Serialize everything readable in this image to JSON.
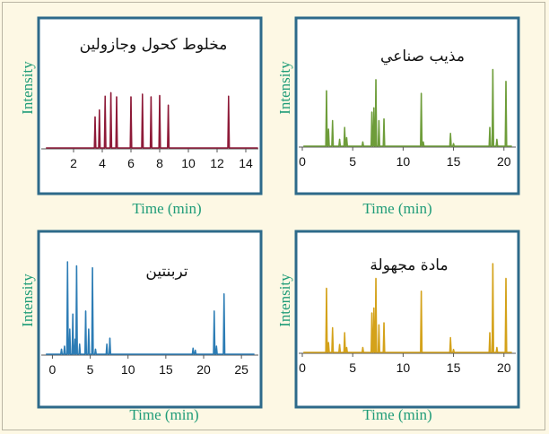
{
  "chart_data": [
    {
      "type": "line",
      "title": "مخلوط كحول وجازولين",
      "xlabel": "Time (min)",
      "ylabel": "Intensity",
      "xlim": [
        0,
        15
      ],
      "xticks": [
        2,
        4,
        6,
        8,
        10,
        12,
        14
      ],
      "ylim": [
        0,
        1
      ],
      "grid": false,
      "color": "#8e1a38",
      "peaks": [
        {
          "x": 3.5,
          "y": 0.45
        },
        {
          "x": 3.8,
          "y": 0.55
        },
        {
          "x": 4.2,
          "y": 0.75
        },
        {
          "x": 4.6,
          "y": 0.8
        },
        {
          "x": 5.0,
          "y": 0.74
        },
        {
          "x": 6.0,
          "y": 0.74
        },
        {
          "x": 6.8,
          "y": 0.78
        },
        {
          "x": 7.4,
          "y": 0.74
        },
        {
          "x": 8.0,
          "y": 0.76
        },
        {
          "x": 8.6,
          "y": 0.62
        },
        {
          "x": 12.8,
          "y": 0.75
        }
      ]
    },
    {
      "type": "line",
      "title": "مذيب صناعي",
      "xlabel": "Time (min)",
      "ylabel": "Intensity",
      "xlim": [
        0,
        21
      ],
      "xticks": [
        0,
        5,
        10,
        15,
        20
      ],
      "ylim": [
        0,
        1
      ],
      "grid": false,
      "color": "#6e9d3a",
      "peaks": [
        {
          "x": 2.4,
          "y": 0.65
        },
        {
          "x": 2.6,
          "y": 0.2
        },
        {
          "x": 3.0,
          "y": 0.3
        },
        {
          "x": 3.7,
          "y": 0.08
        },
        {
          "x": 4.2,
          "y": 0.22
        },
        {
          "x": 4.4,
          "y": 0.1
        },
        {
          "x": 6.0,
          "y": 0.05
        },
        {
          "x": 6.9,
          "y": 0.4
        },
        {
          "x": 7.1,
          "y": 0.45
        },
        {
          "x": 7.3,
          "y": 0.78
        },
        {
          "x": 7.6,
          "y": 0.3
        },
        {
          "x": 8.1,
          "y": 0.32
        },
        {
          "x": 11.8,
          "y": 0.62
        },
        {
          "x": 12.0,
          "y": 0.05
        },
        {
          "x": 14.7,
          "y": 0.15
        },
        {
          "x": 15.0,
          "y": 0.03
        },
        {
          "x": 18.6,
          "y": 0.22
        },
        {
          "x": 18.9,
          "y": 0.9
        },
        {
          "x": 19.3,
          "y": 0.08
        },
        {
          "x": 20.2,
          "y": 0.76
        }
      ]
    },
    {
      "type": "line",
      "title": "تربنتين",
      "xlabel": "Time (min)",
      "ylabel": "Intensity",
      "xlim": [
        -1,
        27
      ],
      "xticks": [
        0,
        5,
        10,
        15,
        20,
        25
      ],
      "ylim": [
        0,
        1
      ],
      "grid": false,
      "color": "#2d7db5",
      "peaks": [
        {
          "x": 1.2,
          "y": 0.05
        },
        {
          "x": 1.6,
          "y": 0.08
        },
        {
          "x": 2.0,
          "y": 0.92
        },
        {
          "x": 2.3,
          "y": 0.25
        },
        {
          "x": 2.7,
          "y": 0.4
        },
        {
          "x": 3.0,
          "y": 0.15
        },
        {
          "x": 3.2,
          "y": 0.88
        },
        {
          "x": 3.6,
          "y": 0.1
        },
        {
          "x": 4.4,
          "y": 0.43
        },
        {
          "x": 4.8,
          "y": 0.25
        },
        {
          "x": 5.3,
          "y": 0.86
        },
        {
          "x": 5.7,
          "y": 0.05
        },
        {
          "x": 7.2,
          "y": 0.1
        },
        {
          "x": 7.6,
          "y": 0.16
        },
        {
          "x": 18.6,
          "y": 0.06
        },
        {
          "x": 18.9,
          "y": 0.04
        },
        {
          "x": 21.4,
          "y": 0.43
        },
        {
          "x": 21.7,
          "y": 0.08
        },
        {
          "x": 22.7,
          "y": 0.6
        }
      ]
    },
    {
      "type": "line",
      "title": "مادة مجهولة",
      "xlabel": "Time (min)",
      "ylabel": "Intensity",
      "xlim": [
        0,
        21
      ],
      "xticks": [
        0,
        5,
        10,
        15,
        20
      ],
      "ylim": [
        0,
        1
      ],
      "grid": false,
      "color": "#d4a21a",
      "peaks": [
        {
          "x": 2.4,
          "y": 0.65
        },
        {
          "x": 2.6,
          "y": 0.1
        },
        {
          "x": 3.0,
          "y": 0.25
        },
        {
          "x": 3.7,
          "y": 0.08
        },
        {
          "x": 4.2,
          "y": 0.2
        },
        {
          "x": 4.4,
          "y": 0.05
        },
        {
          "x": 6.0,
          "y": 0.05
        },
        {
          "x": 6.9,
          "y": 0.4
        },
        {
          "x": 7.1,
          "y": 0.45
        },
        {
          "x": 7.3,
          "y": 0.75
        },
        {
          "x": 7.6,
          "y": 0.28
        },
        {
          "x": 8.1,
          "y": 0.3
        },
        {
          "x": 11.8,
          "y": 0.62
        },
        {
          "x": 14.7,
          "y": 0.15
        },
        {
          "x": 15.0,
          "y": 0.03
        },
        {
          "x": 18.6,
          "y": 0.2
        },
        {
          "x": 18.9,
          "y": 0.9
        },
        {
          "x": 19.3,
          "y": 0.05
        },
        {
          "x": 20.2,
          "y": 0.75
        }
      ]
    }
  ],
  "colors": {
    "frame_border": "#2d6a8a",
    "panel_bg": "#ffffff",
    "page_bg": "#fdf8e4",
    "label_color": "#1f9c78"
  }
}
